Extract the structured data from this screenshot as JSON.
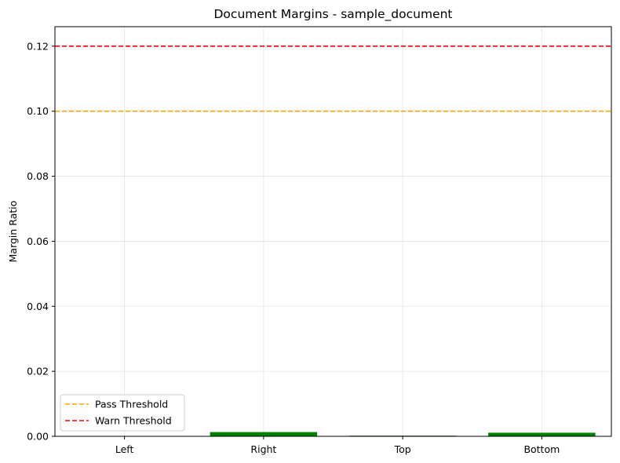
{
  "chart_data": {
    "type": "bar",
    "title": "Document Margins - sample_document",
    "xlabel": "",
    "ylabel": "Margin Ratio",
    "categories": [
      "Left",
      "Right",
      "Top",
      "Bottom"
    ],
    "values": [
      0.0,
      0.0013,
      0.0002,
      0.0011
    ],
    "bar_color": "#008000",
    "ylim": [
      0,
      0.126
    ],
    "yticks": [
      0.0,
      0.02,
      0.04,
      0.06,
      0.08,
      0.1,
      0.12
    ],
    "ytick_labels": [
      "0.00",
      "0.02",
      "0.04",
      "0.06",
      "0.08",
      "0.10",
      "0.12"
    ],
    "grid": true,
    "thresholds": [
      {
        "name": "Pass Threshold",
        "value": 0.1,
        "color": "#FFA500",
        "style": "dashed"
      },
      {
        "name": "Warn Threshold",
        "value": 0.12,
        "color": "#FF0000",
        "style": "dashed"
      }
    ],
    "legend_position": "lower-left"
  }
}
